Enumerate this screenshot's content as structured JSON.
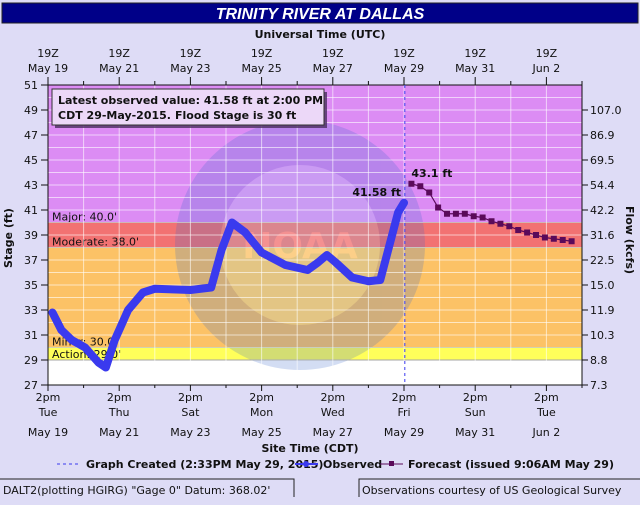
{
  "chart_data": {
    "type": "line",
    "title": "TRINITY RIVER AT DALLAS",
    "top_axis_label": "Universal Time (UTC)",
    "top_ticks": [
      {
        "time": "19Z",
        "date": "May 19"
      },
      {
        "time": "19Z",
        "date": "May 21"
      },
      {
        "time": "19Z",
        "date": "May 23"
      },
      {
        "time": "19Z",
        "date": "May 25"
      },
      {
        "time": "19Z",
        "date": "May 27"
      },
      {
        "time": "19Z",
        "date": "May 29"
      },
      {
        "time": "19Z",
        "date": "May 31"
      },
      {
        "time": "19Z",
        "date": "Jun 2"
      }
    ],
    "xlabel": "Site Time (CDT)",
    "x_range": [
      "2015-05-19T14:00",
      "2015-06-03T14:00"
    ],
    "bottom_ticks": [
      {
        "time": "2pm",
        "day": "Tue",
        "date": "May 19"
      },
      {
        "time": "2pm",
        "day": "Thu",
        "date": "May 21"
      },
      {
        "time": "2pm",
        "day": "Sat",
        "date": "May 23"
      },
      {
        "time": "2pm",
        "day": "Mon",
        "date": "May 25"
      },
      {
        "time": "2pm",
        "day": "Wed",
        "date": "May 27"
      },
      {
        "time": "2pm",
        "day": "Fri",
        "date": "May 29"
      },
      {
        "time": "2pm",
        "day": "Sun",
        "date": "May 31"
      },
      {
        "time": "2pm",
        "day": "Tue",
        "date": "Jun 2"
      }
    ],
    "ylabel": "Stage (ft)",
    "ylim": [
      27,
      51
    ],
    "y_ticks": [
      27,
      29,
      31,
      33,
      35,
      37,
      39,
      41,
      43,
      45,
      47,
      49,
      51
    ],
    "y2label": "Flow (kcfs)",
    "y2_ticks": [
      {
        "stage": 49,
        "label": "107.0"
      },
      {
        "stage": 47,
        "label": "86.9"
      },
      {
        "stage": 45,
        "label": "69.5"
      },
      {
        "stage": 43,
        "label": "54.4"
      },
      {
        "stage": 41,
        "label": "42.2"
      },
      {
        "stage": 39,
        "label": "31.6"
      },
      {
        "stage": 37,
        "label": "22.5"
      },
      {
        "stage": 35,
        "label": "15.0"
      },
      {
        "stage": 33,
        "label": "11.9"
      },
      {
        "stage": 31,
        "label": "10.3"
      },
      {
        "stage": 29,
        "label": "8.8"
      },
      {
        "stage": 27,
        "label": "7.3"
      }
    ],
    "grid": true,
    "flood_categories": [
      {
        "label": "Major: 40.0'",
        "from": 40,
        "to": 51,
        "color": "#dc8cf4"
      },
      {
        "label": "Moderate: 38.0'",
        "from": 38,
        "to": 40,
        "color": "#f27272"
      },
      {
        "label": "Minor: 30.0'",
        "from": 30,
        "to": 38,
        "color": "#fcc266"
      },
      {
        "label": "Action: 29.0'",
        "from": 29,
        "to": 30,
        "color": "#ffff5a"
      }
    ],
    "graph_created_time": "2015-05-29T14:33",
    "series": [
      {
        "name": "Observed",
        "color": "#3a3aee",
        "points": [
          [
            "2015-05-19T17:00",
            32.8
          ],
          [
            "2015-05-19T23:00",
            31.4
          ],
          [
            "2015-05-20T06:00",
            30.6
          ],
          [
            "2015-05-20T15:00",
            30.0
          ],
          [
            "2015-05-21T00:00",
            28.8
          ],
          [
            "2015-05-21T05:00",
            28.4
          ],
          [
            "2015-05-21T11:00",
            30.6
          ],
          [
            "2015-05-21T20:00",
            33.0
          ],
          [
            "2015-05-22T06:00",
            34.4
          ],
          [
            "2015-05-22T14:00",
            34.7
          ],
          [
            "2015-05-23T14:00",
            34.6
          ],
          [
            "2015-05-24T04:00",
            34.8
          ],
          [
            "2015-05-24T11:00",
            37.8
          ],
          [
            "2015-05-24T18:00",
            40.0
          ],
          [
            "2015-05-25T03:00",
            39.2
          ],
          [
            "2015-05-25T14:00",
            37.6
          ],
          [
            "2015-05-26T06:00",
            36.6
          ],
          [
            "2015-05-26T21:00",
            36.2
          ],
          [
            "2015-05-27T04:00",
            36.8
          ],
          [
            "2015-05-27T10:00",
            37.4
          ],
          [
            "2015-05-27T16:00",
            36.8
          ],
          [
            "2015-05-28T03:00",
            35.6
          ],
          [
            "2015-05-28T14:00",
            35.3
          ],
          [
            "2015-05-28T22:00",
            35.4
          ],
          [
            "2015-05-29T06:00",
            39.0
          ],
          [
            "2015-05-29T10:00",
            40.8
          ],
          [
            "2015-05-29T14:00",
            41.58
          ]
        ],
        "end_label": "41.58 ft"
      },
      {
        "name": "Forecast",
        "color": "#5a0a5a",
        "points": [
          [
            "2015-05-29T19:00",
            43.1
          ],
          [
            "2015-05-30T01:00",
            42.9
          ],
          [
            "2015-05-30T07:00",
            42.4
          ],
          [
            "2015-05-30T13:00",
            41.2
          ],
          [
            "2015-05-30T19:00",
            40.7
          ],
          [
            "2015-05-31T01:00",
            40.7
          ],
          [
            "2015-05-31T07:00",
            40.7
          ],
          [
            "2015-05-31T13:00",
            40.5
          ],
          [
            "2015-05-31T19:00",
            40.4
          ],
          [
            "2015-06-01T01:00",
            40.1
          ],
          [
            "2015-06-01T07:00",
            39.9
          ],
          [
            "2015-06-01T13:00",
            39.7
          ],
          [
            "2015-06-01T19:00",
            39.4
          ],
          [
            "2015-06-02T01:00",
            39.2
          ],
          [
            "2015-06-02T07:00",
            39.0
          ],
          [
            "2015-06-02T13:00",
            38.8
          ],
          [
            "2015-06-02T19:00",
            38.7
          ],
          [
            "2015-06-03T01:00",
            38.6
          ],
          [
            "2015-06-03T07:00",
            38.5
          ]
        ],
        "peak_label": "43.1 ft"
      }
    ],
    "info_box": {
      "line1": "Latest observed value: 41.58 ft at 2:00 PM",
      "line2": "CDT 29-May-2015.",
      "flood_stage": "Flood Stage is 30 ft"
    },
    "legend": {
      "position": "bottom",
      "graph_created": "Graph Created (2:33PM May 29, 2015)",
      "observed": "Observed",
      "forecast": "Forecast (issued 9:06AM May 29)"
    },
    "watermark": "NOAA"
  },
  "footer": {
    "left": "DALT2(plotting HGIRG) \"Gage 0\" Datum: 368.02'",
    "right": "Observations courtesy of US Geological Survey"
  }
}
